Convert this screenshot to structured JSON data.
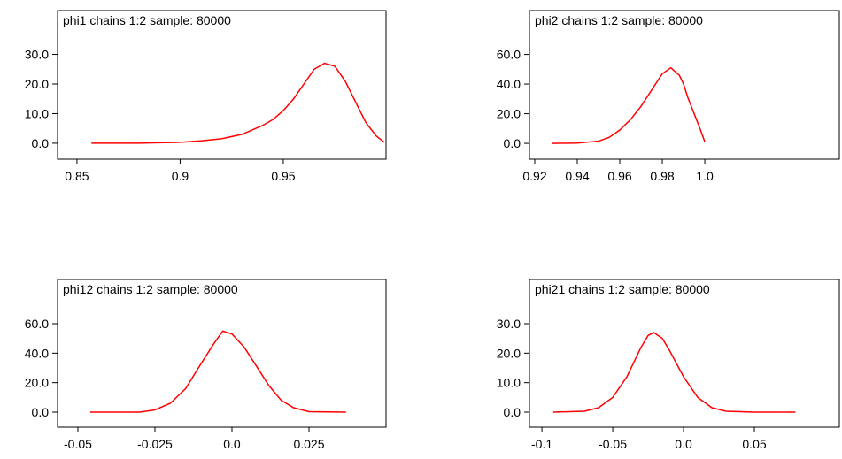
{
  "chart_data": [
    {
      "type": "line",
      "title": "phi1 chains 1:2 sample: 80000",
      "x": [
        0.857,
        0.88,
        0.9,
        0.91,
        0.92,
        0.93,
        0.94,
        0.945,
        0.95,
        0.955,
        0.96,
        0.965,
        0.97,
        0.975,
        0.98,
        0.985,
        0.99,
        0.995,
        0.999
      ],
      "values": [
        0,
        0,
        0.3,
        0.8,
        1.5,
        3,
        6,
        8,
        11,
        15,
        20,
        25,
        27,
        26,
        21,
        14,
        7,
        2.5,
        0.3
      ],
      "color": "#ff0000",
      "xlim": [
        0.8406,
        0.9998
      ],
      "ylim": [
        -5.4,
        44.8
      ],
      "xticks": [
        0.85,
        0.9,
        0.95
      ],
      "yticks": [
        {
          "value": 0,
          "label": "0.0"
        },
        {
          "value": 10,
          "label": "10.0"
        },
        {
          "value": 20,
          "label": "20.0"
        },
        {
          "value": 30,
          "label": "30.0"
        }
      ]
    },
    {
      "type": "line",
      "title": "phi2 chains 1:2 sample: 80000",
      "x": [
        0.928,
        0.94,
        0.95,
        0.955,
        0.96,
        0.965,
        0.97,
        0.975,
        0.98,
        0.984,
        0.988,
        0.99,
        0.992,
        0.995,
        0.998,
        1.0
      ],
      "values": [
        0,
        0.2,
        1.5,
        4,
        9,
        16,
        25,
        36,
        47,
        51,
        46,
        40,
        31,
        20,
        9,
        1
      ],
      "color": "#ff0000",
      "xlim": [
        0.9175,
        1.0633
      ],
      "ylim": [
        -10.7,
        89.6
      ],
      "xticks": [
        0.92,
        0.94,
        0.96,
        0.98,
        {
          "value": 1,
          "label": "1.0"
        }
      ],
      "yticks": [
        {
          "value": 0,
          "label": "0.0"
        },
        {
          "value": 20,
          "label": "20.0"
        },
        {
          "value": 40,
          "label": "40.0"
        },
        {
          "value": 60,
          "label": "60.0"
        }
      ]
    },
    {
      "type": "line",
      "title": "phi12 chains 1:2 sample: 80000",
      "x": [
        -0.046,
        -0.03,
        -0.025,
        -0.02,
        -0.015,
        -0.01,
        -0.006,
        -0.003,
        0,
        0.004,
        0.008,
        0.012,
        0.016,
        0.02,
        0.025,
        0.037
      ],
      "values": [
        0,
        0,
        1.5,
        6,
        16,
        33,
        46,
        55,
        53,
        44,
        31,
        18,
        8,
        3,
        0.3,
        0
      ],
      "color": "#ff0000",
      "xlim": [
        -0.0566,
        0.05
      ],
      "ylim": [
        -10.2,
        90
      ],
      "xticks": [
        -0.05,
        -0.025,
        {
          "value": 0,
          "label": "0.0"
        },
        0.025
      ],
      "yticks": [
        {
          "value": 0,
          "label": "0.0"
        },
        {
          "value": 20,
          "label": "20.0"
        },
        {
          "value": 40,
          "label": "40.0"
        },
        {
          "value": 60,
          "label": "60.0"
        }
      ]
    },
    {
      "type": "line",
      "title": "phi21 chains 1:2 sample: 80000",
      "x": [
        -0.092,
        -0.07,
        -0.06,
        -0.05,
        -0.04,
        -0.03,
        -0.025,
        -0.021,
        -0.015,
        -0.01,
        0,
        0.01,
        0.02,
        0.03,
        0.05,
        0.079
      ],
      "values": [
        0,
        0.3,
        1.5,
        5,
        12,
        22,
        26,
        27,
        25,
        21,
        12,
        5,
        1.5,
        0.3,
        0,
        0
      ],
      "color": "#ff0000",
      "xlim": [
        -0.1088,
        0.11
      ],
      "ylim": [
        -5.1,
        45
      ],
      "xticks": [
        -0.1,
        -0.05,
        {
          "value": 0,
          "label": "0.0"
        },
        0.05
      ],
      "yticks": [
        {
          "value": 0,
          "label": "0.0"
        },
        {
          "value": 10,
          "label": "10.0"
        },
        {
          "value": 20,
          "label": "20.0"
        },
        {
          "value": 30,
          "label": "30.0"
        }
      ]
    }
  ]
}
